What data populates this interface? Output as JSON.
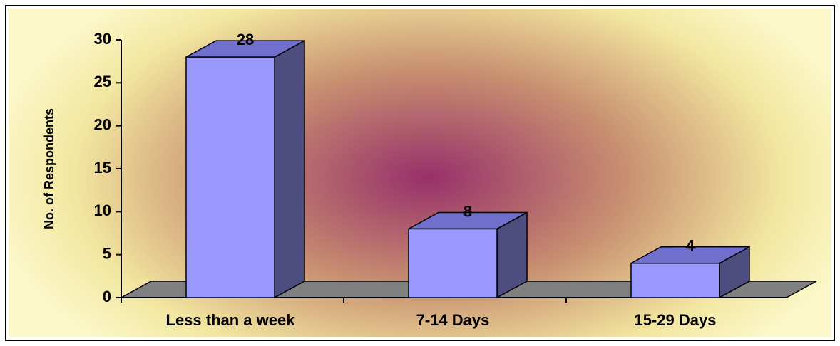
{
  "chart_data": {
    "type": "bar3d",
    "ylabel": "No. of Respondents",
    "categories": [
      "Less than a week",
      "7-14 Days",
      "15-29 Days"
    ],
    "values": [
      28,
      8,
      4
    ],
    "color": "#9999ff",
    "ylim": [
      0,
      30
    ],
    "yticks": [
      0,
      5,
      10,
      15,
      20,
      25,
      30
    ],
    "grid": false
  }
}
